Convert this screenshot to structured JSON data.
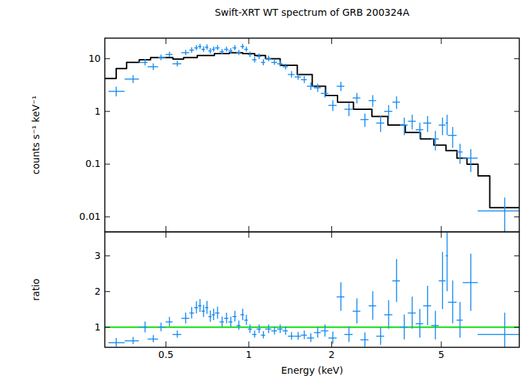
{
  "chart_data": [
    {
      "type": "scatter",
      "title": "Swift-XRT WT spectrum of GRB 200324A",
      "y_label": "counts s⁻¹ keV⁻¹",
      "log": true,
      "tick_labels": "y",
      "xlim": [
        0.3,
        9.6
      ],
      "ylim": [
        0.0052,
        24.5
      ],
      "xticks": [
        0.5,
        1,
        2,
        5
      ],
      "yticks": [
        0.01,
        0.1,
        1,
        10
      ],
      "color": "#1e8ff0",
      "marker": "cross",
      "x": [
        0.33,
        0.38,
        0.42,
        0.45,
        0.48,
        0.515,
        0.55,
        0.59,
        0.62,
        0.645,
        0.665,
        0.685,
        0.705,
        0.725,
        0.745,
        0.77,
        0.8,
        0.83,
        0.86,
        0.89,
        0.92,
        0.95,
        0.98,
        1.01,
        1.05,
        1.09,
        1.13,
        1.18,
        1.24,
        1.3,
        1.36,
        1.43,
        1.51,
        1.59,
        1.68,
        1.78,
        1.89,
        2.02,
        2.16,
        2.31,
        2.47,
        2.64,
        2.82,
        3.01,
        3.22,
        3.44,
        3.67,
        3.92,
        4.18,
        4.46,
        4.76,
        5.05,
        5.25,
        5.5,
        5.85,
        6.4,
        8.5
      ],
      "x_low": [
        0.31,
        0.355,
        0.4,
        0.43,
        0.47,
        0.5,
        0.53,
        0.57,
        0.61,
        0.635,
        0.655,
        0.675,
        0.695,
        0.715,
        0.735,
        0.755,
        0.785,
        0.815,
        0.845,
        0.875,
        0.905,
        0.935,
        0.965,
        0.995,
        1.03,
        1.07,
        1.11,
        1.15,
        1.21,
        1.27,
        1.33,
        1.39,
        1.47,
        1.55,
        1.63,
        1.73,
        1.83,
        1.95,
        2.09,
        2.23,
        2.39,
        2.55,
        2.73,
        2.91,
        3.11,
        3.33,
        3.55,
        3.79,
        4.05,
        4.31,
        4.61,
        4.91,
        5.2,
        5.3,
        5.7,
        6.0,
        6.8
      ],
      "x_high": [
        0.355,
        0.4,
        0.43,
        0.47,
        0.5,
        0.53,
        0.57,
        0.61,
        0.635,
        0.655,
        0.675,
        0.695,
        0.715,
        0.735,
        0.755,
        0.785,
        0.815,
        0.845,
        0.875,
        0.905,
        0.935,
        0.965,
        0.995,
        1.03,
        1.07,
        1.11,
        1.15,
        1.21,
        1.27,
        1.33,
        1.39,
        1.47,
        1.55,
        1.63,
        1.73,
        1.83,
        1.95,
        2.09,
        2.23,
        2.39,
        2.55,
        2.73,
        2.91,
        3.11,
        3.33,
        3.55,
        3.79,
        4.05,
        4.31,
        4.61,
        4.91,
        5.2,
        5.3,
        5.7,
        6.0,
        6.8,
        9.6
      ],
      "values": [
        2.4,
        4.1,
        8.5,
        7.0,
        10.5,
        12.0,
        8.0,
        13,
        14.5,
        16,
        17,
        15,
        16.5,
        14,
        15,
        16,
        13.5,
        15,
        14,
        16,
        13,
        17,
        15,
        12,
        9.5,
        11,
        8.5,
        10,
        8.5,
        8.0,
        7.0,
        5.0,
        4.5,
        4.0,
        3.0,
        2.8,
        2.2,
        1.3,
        3.0,
        1.1,
        1.8,
        0.7,
        1.6,
        0.6,
        1.0,
        1.5,
        0.55,
        0.65,
        0.45,
        0.6,
        0.3,
        0.55,
        0.6,
        0.35,
        0.17,
        0.13,
        0.013
      ],
      "errors": [
        0.5,
        0.7,
        1.2,
        1.0,
        1.3,
        1.4,
        1.0,
        1.5,
        1.7,
        1.8,
        1.9,
        1.8,
        1.9,
        1.7,
        1.7,
        1.8,
        1.6,
        1.7,
        1.6,
        1.8,
        1.5,
        1.9,
        1.7,
        1.4,
        1.2,
        1.3,
        1.1,
        1.2,
        1.0,
        1.0,
        0.9,
        0.7,
        0.6,
        0.6,
        0.5,
        0.5,
        0.4,
        0.3,
        0.6,
        0.3,
        0.4,
        0.2,
        0.4,
        0.2,
        0.3,
        0.4,
        0.2,
        0.2,
        0.15,
        0.2,
        0.12,
        0.2,
        0.25,
        0.15,
        0.07,
        0.06,
        0.01
      ],
      "model": {
        "color": "#000000",
        "line_style": "step",
        "x": [
          0.3,
          0.33,
          0.36,
          0.4,
          0.44,
          0.48,
          0.53,
          0.58,
          0.65,
          0.75,
          0.85,
          0.95,
          1.05,
          1.15,
          1.3,
          1.5,
          1.7,
          1.9,
          2.1,
          2.4,
          2.8,
          3.2,
          3.7,
          4.2,
          4.7,
          5.2,
          5.7,
          6.2,
          6.8,
          7.5,
          9.6
        ],
        "values": [
          4.2,
          6.5,
          8.5,
          9.5,
          10.5,
          10.5,
          9.8,
          10.5,
          11.5,
          12.5,
          13,
          12.5,
          11.5,
          10,
          7.5,
          5,
          3,
          2.0,
          1.5,
          1.1,
          0.8,
          0.55,
          0.4,
          0.3,
          0.23,
          0.18,
          0.13,
          0.1,
          0.06,
          0.015,
          0.015
        ]
      }
    },
    {
      "type": "scatter",
      "x_label": "Energy (keV)",
      "y_label": "ratio",
      "log": "x",
      "xlim": [
        0.3,
        9.6
      ],
      "ylim": [
        0.44,
        3.67
      ],
      "xticks": [
        0.5,
        1,
        2,
        5
      ],
      "yticks": [
        1,
        2,
        3
      ],
      "color": "#1e8ff0",
      "marker": "cross",
      "x": [
        0.33,
        0.38,
        0.42,
        0.45,
        0.48,
        0.515,
        0.55,
        0.59,
        0.62,
        0.645,
        0.665,
        0.685,
        0.705,
        0.725,
        0.745,
        0.77,
        0.8,
        0.83,
        0.86,
        0.89,
        0.92,
        0.95,
        0.98,
        1.01,
        1.05,
        1.09,
        1.13,
        1.18,
        1.24,
        1.3,
        1.36,
        1.43,
        1.51,
        1.59,
        1.68,
        1.78,
        1.89,
        2.02,
        2.16,
        2.31,
        2.47,
        2.64,
        2.82,
        3.01,
        3.22,
        3.44,
        3.67,
        3.92,
        4.18,
        4.46,
        4.76,
        5.05,
        5.25,
        5.5,
        5.85,
        6.4,
        8.5
      ],
      "x_low": [
        0.31,
        0.355,
        0.4,
        0.43,
        0.47,
        0.5,
        0.53,
        0.57,
        0.61,
        0.635,
        0.655,
        0.675,
        0.695,
        0.715,
        0.735,
        0.755,
        0.785,
        0.815,
        0.845,
        0.875,
        0.905,
        0.935,
        0.965,
        0.995,
        1.03,
        1.07,
        1.11,
        1.15,
        1.21,
        1.27,
        1.33,
        1.39,
        1.47,
        1.55,
        1.63,
        1.73,
        1.83,
        1.95,
        2.09,
        2.23,
        2.39,
        2.55,
        2.73,
        2.91,
        3.11,
        3.33,
        3.55,
        3.79,
        4.05,
        4.31,
        4.61,
        4.91,
        5.2,
        5.3,
        5.7,
        6.0,
        6.8
      ],
      "x_high": [
        0.355,
        0.4,
        0.43,
        0.47,
        0.5,
        0.53,
        0.57,
        0.61,
        0.635,
        0.655,
        0.675,
        0.695,
        0.715,
        0.735,
        0.755,
        0.785,
        0.815,
        0.845,
        0.875,
        0.905,
        0.935,
        0.965,
        0.995,
        1.03,
        1.07,
        1.11,
        1.15,
        1.21,
        1.27,
        1.33,
        1.39,
        1.47,
        1.55,
        1.63,
        1.73,
        1.83,
        1.95,
        2.09,
        2.23,
        2.39,
        2.55,
        2.73,
        2.91,
        3.11,
        3.33,
        3.55,
        3.79,
        4.05,
        4.31,
        4.61,
        4.91,
        5.2,
        5.3,
        5.7,
        6.0,
        6.8,
        9.6
      ],
      "values": [
        0.57,
        0.62,
        1.0,
        0.67,
        1.0,
        1.15,
        0.8,
        1.25,
        1.4,
        1.55,
        1.6,
        1.45,
        1.55,
        1.3,
        1.35,
        1.4,
        1.15,
        1.25,
        1.15,
        1.3,
        1.05,
        1.35,
        1.2,
        0.95,
        0.8,
        0.95,
        0.78,
        0.95,
        0.9,
        0.95,
        0.9,
        0.75,
        0.75,
        0.78,
        0.7,
        0.85,
        0.9,
        0.7,
        1.85,
        0.8,
        1.45,
        0.65,
        1.6,
        0.75,
        1.35,
        2.3,
        1.0,
        1.4,
        1.1,
        1.6,
        1.05,
        2.3,
        3.0,
        1.7,
        1.2,
        2.25,
        0.8
      ],
      "errors": [
        0.12,
        0.1,
        0.15,
        0.1,
        0.12,
        0.13,
        0.1,
        0.15,
        0.16,
        0.17,
        0.18,
        0.17,
        0.18,
        0.16,
        0.16,
        0.17,
        0.14,
        0.15,
        0.14,
        0.15,
        0.13,
        0.16,
        0.14,
        0.12,
        0.1,
        0.12,
        0.1,
        0.12,
        0.11,
        0.12,
        0.12,
        0.11,
        0.11,
        0.12,
        0.12,
        0.15,
        0.17,
        0.17,
        0.4,
        0.22,
        0.35,
        0.2,
        0.4,
        0.25,
        0.4,
        0.6,
        0.35,
        0.45,
        0.4,
        0.55,
        0.4,
        0.8,
        1.0,
        0.6,
        0.5,
        0.8,
        0.6
      ],
      "reference": {
        "value": 1,
        "color": "#00dd00"
      }
    }
  ]
}
